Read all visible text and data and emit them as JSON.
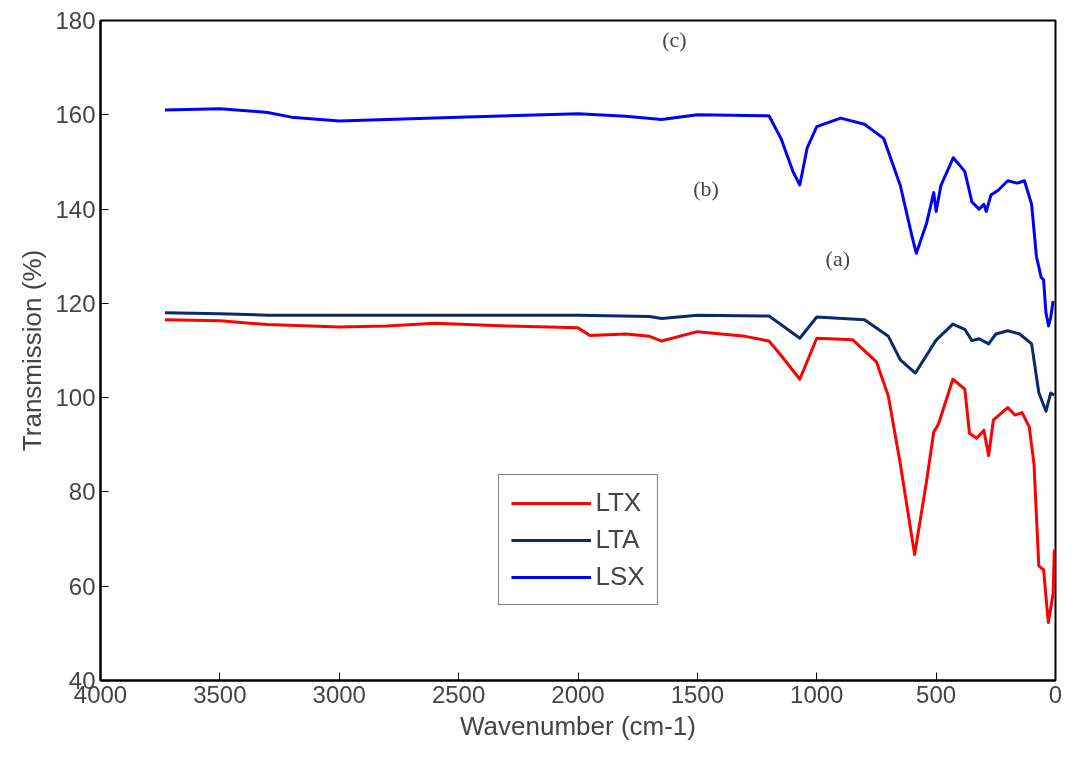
{
  "chart_data": {
    "type": "line",
    "xlabel": "Wavenumber (cm-1)",
    "ylabel": "Transmission (%)",
    "xlim": [
      4000,
      0
    ],
    "xticks": [
      4000,
      3500,
      3000,
      2500,
      2000,
      1500,
      1000,
      500,
      0
    ],
    "ylim": [
      40,
      180
    ],
    "yticks": [
      40,
      60,
      80,
      100,
      120,
      140,
      160,
      180
    ],
    "grid": false,
    "legend": "bottom",
    "line_style": "solid",
    "annotations": [
      "(c)",
      "(b)",
      "(a)"
    ],
    "series": [
      {
        "name": "LTX",
        "color": "#ff0000",
        "x": [
          3730,
          3500,
          3300,
          3000,
          2800,
          2600,
          2300,
          2000,
          1950,
          1800,
          1700,
          1650,
          1500,
          1300,
          1200,
          1150,
          1071,
          1000,
          850,
          750,
          700,
          650,
          590,
          540,
          510,
          490,
          430,
          380,
          360,
          330,
          300,
          280,
          260,
          200,
          170,
          140,
          110,
          90,
          70,
          50,
          30,
          10,
          5
        ],
        "values": [
          116.5,
          116.3,
          115.5,
          115,
          115.2,
          115.8,
          115.2,
          114.8,
          113.2,
          113.5,
          113,
          112,
          114,
          113,
          112,
          109,
          103.9,
          112.6,
          112.3,
          107.6,
          100.3,
          85.9,
          66.7,
          82.3,
          92.7,
          94.4,
          103.9,
          101.8,
          92.4,
          91.4,
          93.1,
          87.7,
          95.3,
          97.9,
          96.3,
          96.8,
          93.8,
          85.9,
          64.3,
          63.5,
          52.3,
          58.4,
          67.8
        ]
      },
      {
        "name": "LTA",
        "color": "#0b2a6b",
        "x": [
          3730,
          3500,
          3300,
          3000,
          2500,
          2000,
          1700,
          1650,
          1500,
          1200,
          1150,
          1071,
          1000,
          800,
          700,
          650,
          587,
          540,
          500,
          430,
          380,
          350,
          320,
          280,
          250,
          200,
          150,
          100,
          70,
          40,
          20,
          5
        ],
        "values": [
          118,
          117.8,
          117.5,
          117.5,
          117.5,
          117.5,
          117.2,
          116.8,
          117.5,
          117.3,
          115.5,
          112.6,
          117.1,
          116.5,
          113,
          108,
          105.2,
          109,
          112.2,
          115.6,
          114.5,
          112.1,
          112.5,
          111.4,
          113.5,
          114.2,
          113.5,
          111.4,
          101.1,
          97.1,
          101,
          100.5
        ]
      },
      {
        "name": "LSX",
        "color": "#0000ff",
        "x": [
          3730,
          3500,
          3300,
          3200,
          3000,
          2800,
          2500,
          2000,
          1800,
          1650,
          1500,
          1200,
          1150,
          1100,
          1071,
          1040,
          1000,
          900,
          800,
          720,
          650,
          600,
          583,
          540,
          510,
          500,
          480,
          428,
          380,
          350,
          320,
          300,
          290,
          270,
          240,
          200,
          160,
          130,
          100,
          80,
          60,
          50,
          40,
          29,
          20,
          10
        ],
        "values": [
          161,
          161.3,
          160.5,
          159.5,
          158.7,
          159,
          159.5,
          160.2,
          159.7,
          159,
          160,
          159.8,
          155,
          148,
          145.1,
          153,
          157.5,
          159.3,
          158,
          155,
          145,
          134,
          130.6,
          137,
          143.5,
          139.5,
          145,
          150.9,
          148,
          141.5,
          140,
          141,
          139.5,
          143,
          144,
          146,
          145.5,
          146,
          141,
          130,
          125.5,
          125,
          118,
          115.2,
          117,
          120.5
        ]
      }
    ]
  }
}
